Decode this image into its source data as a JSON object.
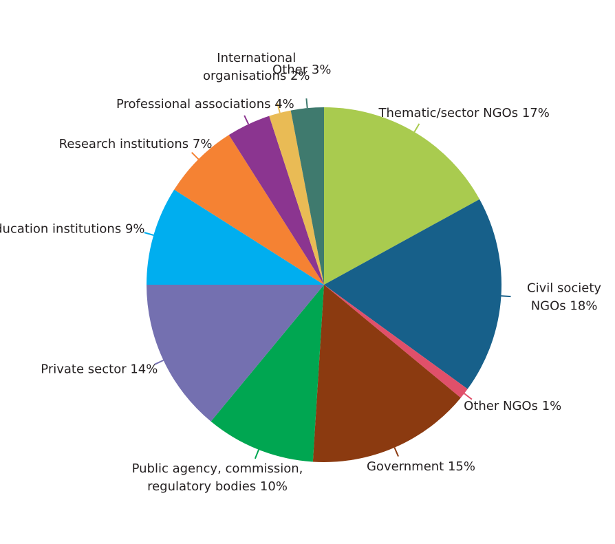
{
  "chart_data": {
    "type": "pie",
    "categories": [
      "Thematic/sector NGOs",
      "Civil society NGOs",
      "Other NGOs",
      "Government",
      "Public agency, commission, regulatory bodies",
      "Private sector",
      "Education institutions",
      "Research institutions",
      "Professional associations",
      "International organisations",
      "Other"
    ],
    "values": [
      17,
      18,
      1,
      15,
      10,
      14,
      9,
      7,
      4,
      2,
      3
    ],
    "value_labels": [
      "17%",
      "18%",
      "1%",
      "15%",
      "10%",
      "14%",
      "9%",
      "7%",
      "4%",
      "2%",
      "3%"
    ],
    "colors": [
      "#a9cb4f",
      "#17608a",
      "#e0506a",
      "#8b3a10",
      "#00a651",
      "#7470b0",
      "#00aeef",
      "#f58233",
      "#8b3590",
      "#e9bb55",
      "#3f7a6e"
    ]
  }
}
